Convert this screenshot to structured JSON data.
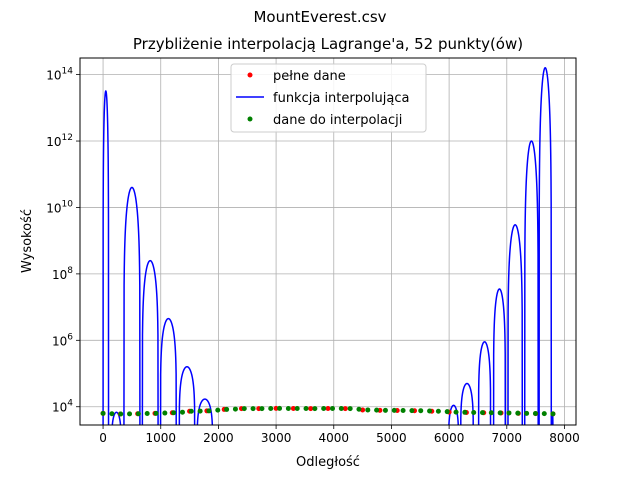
{
  "figure": {
    "suptitle": "MountEverest.csv"
  },
  "chart_data": {
    "type": "line",
    "title": "Przybliżenie interpolacją Lagrange'a, 52 punkty(ów)",
    "xlabel": "Odległość",
    "ylabel": "Wysokość",
    "xlim": [
      -400,
      8200
    ],
    "ylim_log10": [
      3.45,
      14.5
    ],
    "yscale": "log",
    "grid": true,
    "legend_position": "top-center",
    "xticks": [
      {
        "value": 0,
        "label": "0"
      },
      {
        "value": 1000,
        "label": "1000"
      },
      {
        "value": 2000,
        "label": "2000"
      },
      {
        "value": 3000,
        "label": "3000"
      },
      {
        "value": 4000,
        "label": "4000"
      },
      {
        "value": 5000,
        "label": "5000"
      },
      {
        "value": 6000,
        "label": "6000"
      },
      {
        "value": 7000,
        "label": "7000"
      },
      {
        "value": 8000,
        "label": "8000"
      }
    ],
    "yticks": [
      {
        "exp": 4,
        "base": "10",
        "sup": "4"
      },
      {
        "exp": 6,
        "base": "10",
        "sup": "6"
      },
      {
        "exp": 8,
        "base": "10",
        "sup": "8"
      },
      {
        "exp": 10,
        "base": "10",
        "sup": "10"
      },
      {
        "exp": 12,
        "base": "10",
        "sup": "12"
      },
      {
        "exp": 14,
        "base": "10",
        "sup": "14"
      }
    ],
    "series": [
      {
        "name": "pełne dane",
        "kind": "points",
        "color": "#ff0000",
        "x": [
          0,
          300,
          600,
          900,
          1200,
          1500,
          1800,
          2100,
          2400,
          2700,
          3000,
          3300,
          3600,
          3900,
          4200,
          4500,
          4800,
          5100,
          5400,
          5700,
          6000,
          6300,
          6600,
          6900,
          7200,
          7500,
          7800
        ],
        "y": [
          6300,
          6050,
          6150,
          6300,
          6600,
          7300,
          7500,
          8300,
          8800,
          8800,
          8900,
          8850,
          8800,
          8850,
          8800,
          8000,
          7800,
          7700,
          7600,
          7300,
          6900,
          6700,
          6600,
          6500,
          6300,
          6200,
          6100
        ]
      },
      {
        "name": "funkcja interpolująca",
        "kind": "line",
        "color": "#0000ff",
        "x_arch": [
          [
            0,
            95
          ],
          [
            148,
            315
          ],
          [
            361,
            640
          ],
          [
            680,
            955
          ],
          [
            995,
            1270
          ],
          [
            1320,
            1590
          ],
          [
            1630,
            1900
          ],
          [
            5990,
            6165
          ],
          [
            6200,
            6420
          ],
          [
            6510,
            6720
          ],
          [
            6770,
            6975
          ],
          [
            7020,
            7270
          ],
          [
            7310,
            7545
          ],
          [
            7560,
            7772
          ],
          [
            7790,
            7800
          ]
        ],
        "peak_y": [
          32000000000000.0,
          6800,
          40000000000.0,
          250000000.0,
          4500000.0,
          160000.0,
          17000.0,
          11000.0,
          50000.0,
          900000.0,
          35000000.0,
          3000000000.0,
          1000000000000.0,
          160000000000000.0,
          6100
        ]
      },
      {
        "name": "dane do interpolacji",
        "kind": "points",
        "color": "#008000",
        "x": [
          0,
          153,
          306,
          459,
          612,
          765,
          918,
          1071,
          1224,
          1377,
          1530,
          1683,
          1836,
          1989,
          2142,
          2295,
          2448,
          2601,
          2754,
          2907,
          3060,
          3213,
          3366,
          3519,
          3672,
          3825,
          3978,
          4131,
          4284,
          4437,
          4590,
          4743,
          4896,
          5049,
          5202,
          5355,
          5508,
          5661,
          5814,
          5967,
          6120,
          6273,
          6426,
          6579,
          6732,
          6885,
          7038,
          7191,
          7344,
          7497,
          7650,
          7800
        ],
        "y": [
          6300,
          6150,
          6050,
          6100,
          6150,
          6250,
          6300,
          6450,
          6600,
          6850,
          7300,
          7400,
          7500,
          7900,
          8300,
          8500,
          8800,
          8800,
          8800,
          8850,
          8900,
          8870,
          8850,
          8820,
          8800,
          8830,
          8850,
          8820,
          8800,
          8400,
          8000,
          7900,
          7800,
          7750,
          7700,
          7650,
          7600,
          7450,
          7300,
          7100,
          6900,
          6800,
          6700,
          6650,
          6600,
          6550,
          6500,
          6400,
          6300,
          6250,
          6200,
          6100
        ]
      }
    ]
  }
}
